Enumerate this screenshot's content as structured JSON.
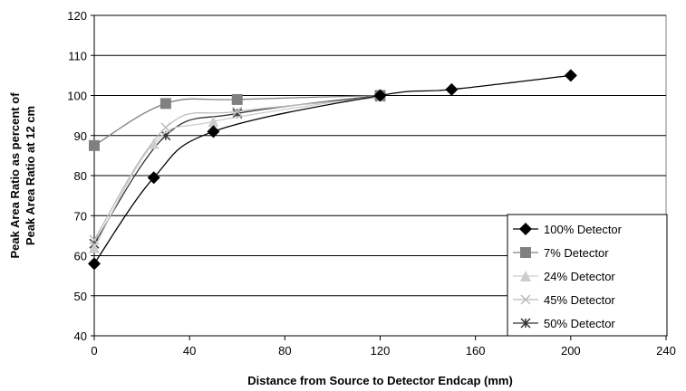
{
  "chart_data": {
    "type": "line",
    "title": "",
    "xlabel": "Distance from Source to Detector Endcap (mm)",
    "ylabel": [
      "Peak Area Ratio as percent of",
      "Peak Area Ratio at 12 cm"
    ],
    "xlim": [
      0,
      240
    ],
    "ylim": [
      40,
      120
    ],
    "xticks": [
      0,
      40,
      80,
      120,
      160,
      200,
      240
    ],
    "yticks": [
      40,
      50,
      60,
      70,
      80,
      90,
      100,
      110,
      120
    ],
    "grid": "horizontal",
    "legend_position": "bottom-right",
    "series": [
      {
        "name": "100% Detector",
        "color": "#000000",
        "marker": "diamond",
        "x": [
          0,
          25,
          50,
          120,
          150,
          200
        ],
        "y": [
          58,
          79.5,
          91,
          100,
          101.5,
          105
        ]
      },
      {
        "name": "7% Detector",
        "color": "#808080",
        "marker": "square",
        "x": [
          0,
          30,
          60,
          120
        ],
        "y": [
          87.5,
          98,
          99,
          100
        ]
      },
      {
        "name": "24% Detector",
        "color": "#cccccc",
        "marker": "triangle",
        "x": [
          0,
          25,
          50,
          120
        ],
        "y": [
          62,
          88,
          93.5,
          100
        ]
      },
      {
        "name": "45% Detector",
        "color": "#bbbbbb",
        "marker": "x",
        "x": [
          0,
          30,
          60,
          120
        ],
        "y": [
          64,
          92,
          96,
          99.5
        ]
      },
      {
        "name": "50% Detector",
        "color": "#333333",
        "marker": "asterisk",
        "x": [
          0,
          30,
          60,
          120
        ],
        "y": [
          63,
          90,
          95.5,
          100
        ]
      }
    ]
  }
}
